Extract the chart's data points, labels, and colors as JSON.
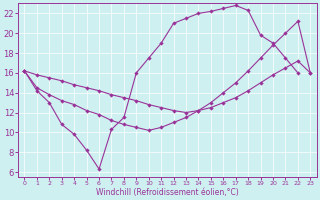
{
  "xlabel": "Windchill (Refroidissement éolien,°C)",
  "bg_color": "#cff0f0",
  "line_color": "#993399",
  "xlim": [
    -0.5,
    23.5
  ],
  "ylim": [
    5.5,
    23.0
  ],
  "yticks": [
    6,
    8,
    10,
    12,
    14,
    16,
    18,
    20,
    22
  ],
  "xticks": [
    0,
    1,
    2,
    3,
    4,
    5,
    6,
    7,
    8,
    9,
    10,
    11,
    12,
    13,
    14,
    15,
    16,
    17,
    18,
    19,
    20,
    21,
    22,
    23
  ],
  "line1_x": [
    0,
    1,
    2,
    3,
    4,
    5,
    6,
    7,
    8,
    9,
    10,
    11,
    12,
    13,
    14,
    15,
    16,
    17,
    18,
    19,
    20,
    21,
    22
  ],
  "line1_y": [
    16.2,
    14.2,
    13.0,
    10.8,
    9.8,
    8.2,
    6.3,
    10.3,
    11.5,
    16.0,
    17.5,
    19.0,
    21.0,
    21.5,
    22.0,
    22.2,
    22.5,
    22.8,
    22.3,
    19.8,
    19.0,
    17.5,
    16.0
  ],
  "line2_x": [
    0,
    1,
    2,
    3,
    4,
    5,
    6,
    7,
    8,
    9,
    10,
    11,
    12,
    13,
    14,
    15,
    16,
    17,
    18,
    19,
    20,
    21,
    22,
    23
  ],
  "line2_y": [
    16.2,
    15.8,
    15.5,
    15.2,
    14.8,
    14.5,
    14.2,
    13.8,
    13.5,
    13.2,
    12.8,
    12.5,
    12.2,
    12.0,
    12.2,
    12.5,
    13.0,
    13.5,
    14.2,
    15.0,
    15.8,
    16.5,
    17.2,
    16.0
  ],
  "line3_x": [
    0,
    1,
    2,
    3,
    4,
    5,
    6,
    7,
    8,
    9,
    10,
    11,
    12,
    13,
    14,
    15,
    16,
    17,
    18,
    19,
    20,
    21,
    22,
    23
  ],
  "line3_y": [
    16.2,
    14.5,
    13.8,
    13.2,
    12.8,
    12.2,
    11.8,
    11.2,
    10.8,
    10.5,
    10.2,
    10.5,
    11.0,
    11.5,
    12.2,
    13.0,
    14.0,
    15.0,
    16.2,
    17.5,
    18.8,
    20.0,
    21.2,
    16.0
  ]
}
